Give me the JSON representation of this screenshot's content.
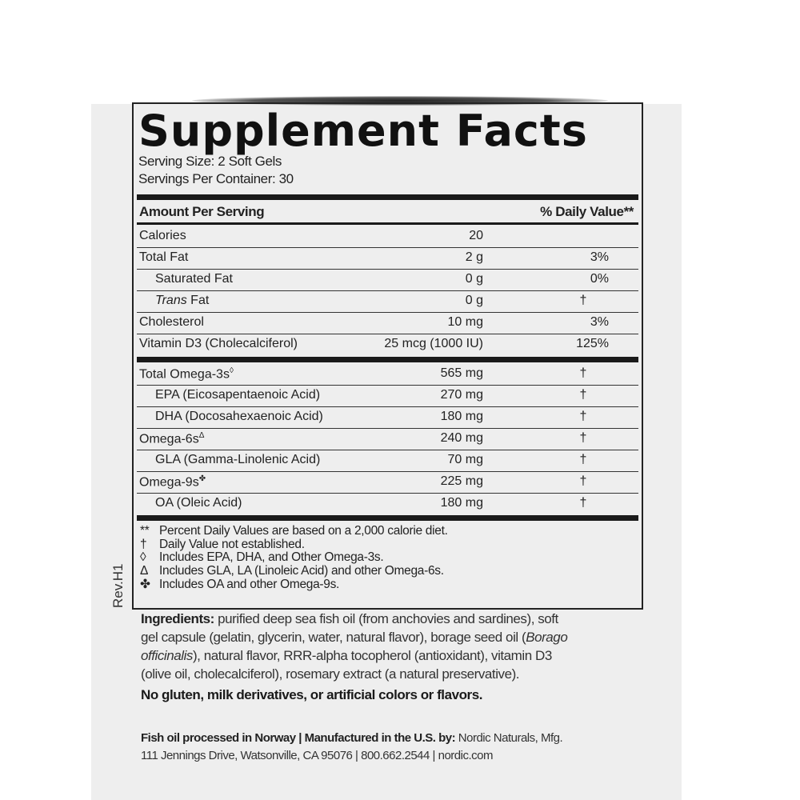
{
  "title": "Supplement Facts",
  "serving_size": "Serving Size: 2 Soft Gels",
  "servings_per_container": "Servings Per Container: 30",
  "header": {
    "amount": "Amount Per Serving",
    "dv": "% Daily Value**"
  },
  "rows_top": [
    {
      "name": "Calories",
      "amount": "20",
      "dv": ""
    },
    {
      "name": "Total Fat",
      "amount": "2 g",
      "dv": "3%"
    },
    {
      "name": "Saturated Fat",
      "amount": "0 g",
      "dv": "0%"
    },
    {
      "name_italic": "Trans",
      "name": " Fat",
      "amount": "0 g",
      "dv": "†"
    },
    {
      "name": "Cholesterol",
      "amount": "10 mg",
      "dv": "3%"
    },
    {
      "name": "Vitamin D3 (Cholecalciferol)",
      "amount": "25 mcg (1000 IU)",
      "dv": "125%"
    }
  ],
  "rows_omega": [
    {
      "name": "Total Omega-3s",
      "mark": "◊",
      "amount": "565 mg",
      "dv": "†"
    },
    {
      "name": "EPA (Eicosapentaenoic Acid)",
      "amount": "270 mg",
      "dv": "†"
    },
    {
      "name": "DHA (Docosahexaenoic Acid)",
      "amount": "180 mg",
      "dv": "†"
    },
    {
      "name": "Omega-6s",
      "mark": "Δ",
      "amount": "240 mg",
      "dv": "†"
    },
    {
      "name": "GLA (Gamma-Linolenic Acid)",
      "amount": "70 mg",
      "dv": "†"
    },
    {
      "name": "Omega-9s",
      "mark": "✤",
      "amount": "225 mg",
      "dv": "†"
    },
    {
      "name": "OA (Oleic Acid)",
      "amount": "180 mg",
      "dv": "†"
    }
  ],
  "footnotes": [
    {
      "sym": "**",
      "text": "Percent Daily Values are based on a 2,000 calorie diet."
    },
    {
      "sym": "†",
      "text": "Daily Value not established."
    },
    {
      "sym": "◊",
      "text": "Includes EPA, DHA, and Other Omega-3s."
    },
    {
      "sym": "Δ",
      "text": "Includes GLA, LA (Linoleic Acid) and other Omega-6s."
    },
    {
      "sym": "✤",
      "text": "Includes OA and other Omega-9s."
    }
  ],
  "revision": "Rev.H1",
  "ingredients": {
    "label": "Ingredients:",
    "line1": " purified deep sea fish oil (from anchovies and sardines), soft",
    "line2": "gel capsule (gelatin, glycerin, water, natural flavor), borage seed oil (",
    "line2_italic": "Borago",
    "line3_italic": "officinalis",
    "line3": "), natural flavor, RRR-alpha tocopherol (antioxidant), vitamin D3",
    "line4": "(olive oil, cholecalciferol), rosemary extract (a natural preservative)."
  },
  "free_from": "No gluten, milk derivatives, or artificial colors or flavors.",
  "manufacturer": {
    "bold": "Fish oil processed in Norway | Manufactured in the U.S. by:",
    "name": " Nordic Naturals, Mfg.",
    "address": "111 Jennings Drive, Watsonville, CA 95076 | 800.662.2544 | nordic.com"
  }
}
